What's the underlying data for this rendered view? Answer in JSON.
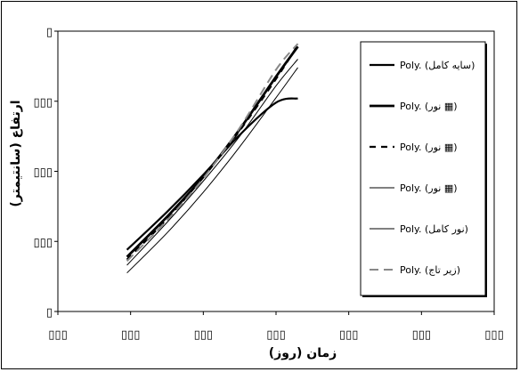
{
  "chart_data": {
    "type": "line",
    "title": "",
    "xlabel": "زمان (روز)",
    "ylabel": "ارتفاع (سانتیمتر)",
    "xlim": [
      0,
      6
    ],
    "ylim": [
      0,
      4
    ],
    "x_ticks": [
      0,
      1,
      2,
      3,
      4,
      5,
      6
    ],
    "y_ticks": [
      0,
      1,
      2,
      3,
      4
    ],
    "tick_glyph": "▯",
    "grid": false,
    "plot_background": "#ffffff",
    "legend_position": "right",
    "series": [
      {
        "name": "Poly. (سایه کامل)",
        "style": "solid",
        "color": "#000000",
        "width": 2.2,
        "x": [
          0.95,
          1.5,
          2.0,
          2.5,
          3.0,
          3.3
        ],
        "y": [
          0.88,
          1.42,
          1.95,
          2.52,
          2.98,
          3.04
        ]
      },
      {
        "name": "Poly. (نور ▦)",
        "style": "solid",
        "color": "#000000",
        "width": 2.8,
        "x": [
          0.95,
          1.5,
          2.0,
          2.5,
          3.0,
          3.3
        ],
        "y": [
          0.78,
          1.35,
          1.92,
          2.6,
          3.35,
          3.78
        ]
      },
      {
        "name": "Poly. (نور ▦)",
        "style": "dashed",
        "color": "#000000",
        "width": 2.2,
        "x": [
          0.95,
          1.5,
          2.0,
          2.5,
          3.0,
          3.3
        ],
        "y": [
          0.74,
          1.32,
          1.92,
          2.58,
          3.32,
          3.8
        ]
      },
      {
        "name": "Poly. (نور ▦)",
        "style": "solid",
        "color": "#000000",
        "width": 1.0,
        "x": [
          0.95,
          1.5,
          2.0,
          2.5,
          3.0,
          3.3
        ],
        "y": [
          0.55,
          1.12,
          1.7,
          2.35,
          3.05,
          3.48
        ]
      },
      {
        "name": "Poly. (نور کامل)",
        "style": "solid",
        "color": "#000000",
        "width": 1.0,
        "x": [
          0.95,
          1.5,
          2.0,
          2.5,
          3.0,
          3.3
        ],
        "y": [
          0.66,
          1.27,
          1.86,
          2.5,
          3.22,
          3.6
        ]
      },
      {
        "name": "Poly. (زیر تاج)",
        "style": "dashed",
        "color": "#888888",
        "width": 2.0,
        "x": [
          0.95,
          1.5,
          2.0,
          2.5,
          3.0,
          3.3
        ],
        "y": [
          0.72,
          1.3,
          1.9,
          2.62,
          3.45,
          3.82
        ]
      }
    ]
  }
}
